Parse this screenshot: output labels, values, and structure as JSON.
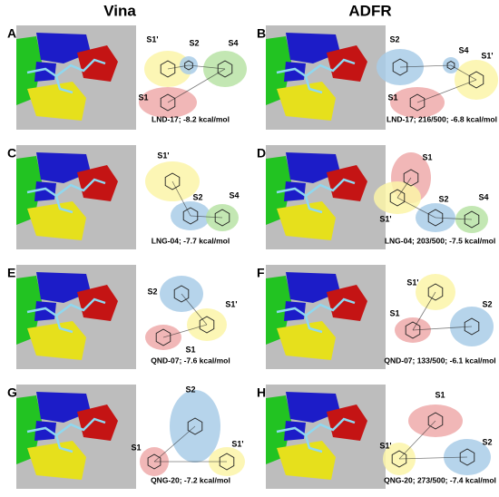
{
  "headers": [
    "Vina",
    "ADFR"
  ],
  "panels": [
    {
      "letter": "A",
      "caption": "LND-17; -8.2 kcal/mol",
      "sites": [
        "S1'",
        "S2",
        "S4",
        "S1"
      ]
    },
    {
      "letter": "B",
      "caption": "LND-17; 216/500; -6.8 kcal/mol",
      "sites": [
        "S2",
        "S4",
        "S1'",
        "S1"
      ]
    },
    {
      "letter": "C",
      "caption": "LNG-04; -7.7 kcal/mol",
      "sites": [
        "S1'",
        "S2",
        "S4"
      ]
    },
    {
      "letter": "D",
      "caption": "LNG-04; 203/500; -7.5 kcal/mol",
      "sites": [
        "S1",
        "S1'",
        "S2",
        "S4"
      ]
    },
    {
      "letter": "E",
      "caption": "QND-07; -7.6 kcal/mol",
      "sites": [
        "S2",
        "S1'",
        "S1"
      ]
    },
    {
      "letter": "F",
      "caption": "QND-07; 133/500; -6.1 kcal/mol",
      "sites": [
        "S1'",
        "S1",
        "S2"
      ]
    },
    {
      "letter": "G",
      "caption": "QNG-20; -7.2 kcal/mol",
      "sites": [
        "S2",
        "S1",
        "S1'"
      ]
    },
    {
      "letter": "H",
      "caption": "QNG-20; 273/500; -7.4 kcal/mol",
      "sites": [
        "S1",
        "S1'",
        "S2"
      ]
    }
  ]
}
